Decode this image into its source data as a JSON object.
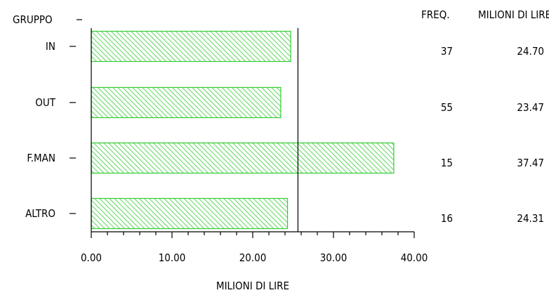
{
  "chart_data": {
    "type": "bar",
    "orientation": "horizontal",
    "category_header": "GRUPPO",
    "categories": [
      "IN",
      "OUT",
      "F.MAN",
      "ALTRO"
    ],
    "values": [
      24.7,
      23.47,
      37.47,
      24.31
    ],
    "value_labels": [
      "24.70",
      "23.47",
      "37.47",
      "24.31"
    ],
    "freq_header": "FREQ.",
    "freq": [
      "37",
      "55",
      "15",
      "16"
    ],
    "value_header": "MILIONI DI LIRE",
    "xlabel": "MILIONI DI LIRE",
    "xlim": [
      0,
      40
    ],
    "x_ticks": [
      "0.00",
      "10.00",
      "20.00",
      "30.00",
      "40.00"
    ],
    "reference_line": 25.6,
    "bar_color": "#33cc33",
    "bar_fill": "#ccf5cc",
    "grid": false
  }
}
